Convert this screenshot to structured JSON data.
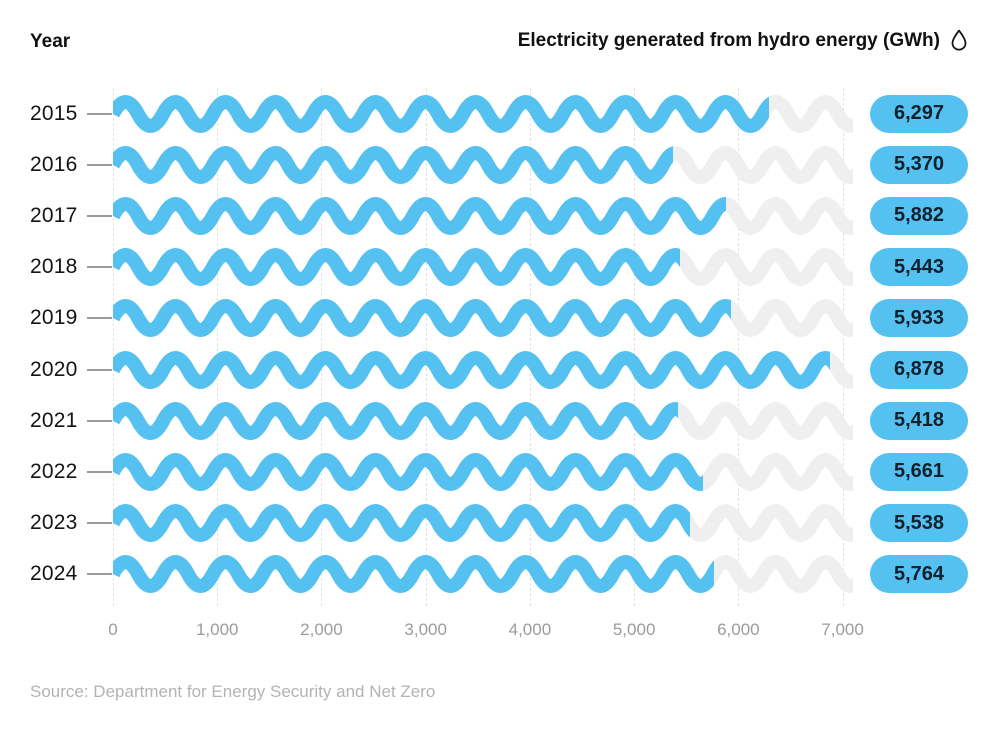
{
  "header": {
    "left_label": "Year",
    "title": "Electricity generated from hydro energy (GWh)",
    "title_icon": "water-drop-icon"
  },
  "chart_data": {
    "type": "bar",
    "orientation": "horizontal",
    "title": "Electricity generated from hydro energy (GWh)",
    "xlabel": "",
    "ylabel": "Year",
    "categories": [
      "2015",
      "2016",
      "2017",
      "2018",
      "2019",
      "2020",
      "2021",
      "2022",
      "2023",
      "2024"
    ],
    "values": [
      6297,
      5370,
      5882,
      5443,
      5933,
      6878,
      5418,
      5661,
      5538,
      5764
    ],
    "value_labels": [
      "6,297",
      "5,370",
      "5,882",
      "5,443",
      "5,933",
      "6,878",
      "5,418",
      "5,661",
      "5,538",
      "5,764"
    ],
    "xlim": [
      0,
      7100
    ],
    "ticks": {
      "values": [
        0,
        1000,
        2000,
        3000,
        4000,
        5000,
        6000,
        7000
      ],
      "labels": [
        "0",
        "1,000",
        "2,000",
        "3,000",
        "4,000",
        "5,000",
        "6,000",
        "7,000"
      ]
    },
    "grid": "vertical-dashed",
    "legend": "none",
    "bar_color": "#55C1F1",
    "track_color": "#EFEFEF",
    "badge_color": "#55C1F1",
    "badge_text_color": "#10202C"
  },
  "source": {
    "text": "Source: Department for Energy Security and Net Zero"
  }
}
